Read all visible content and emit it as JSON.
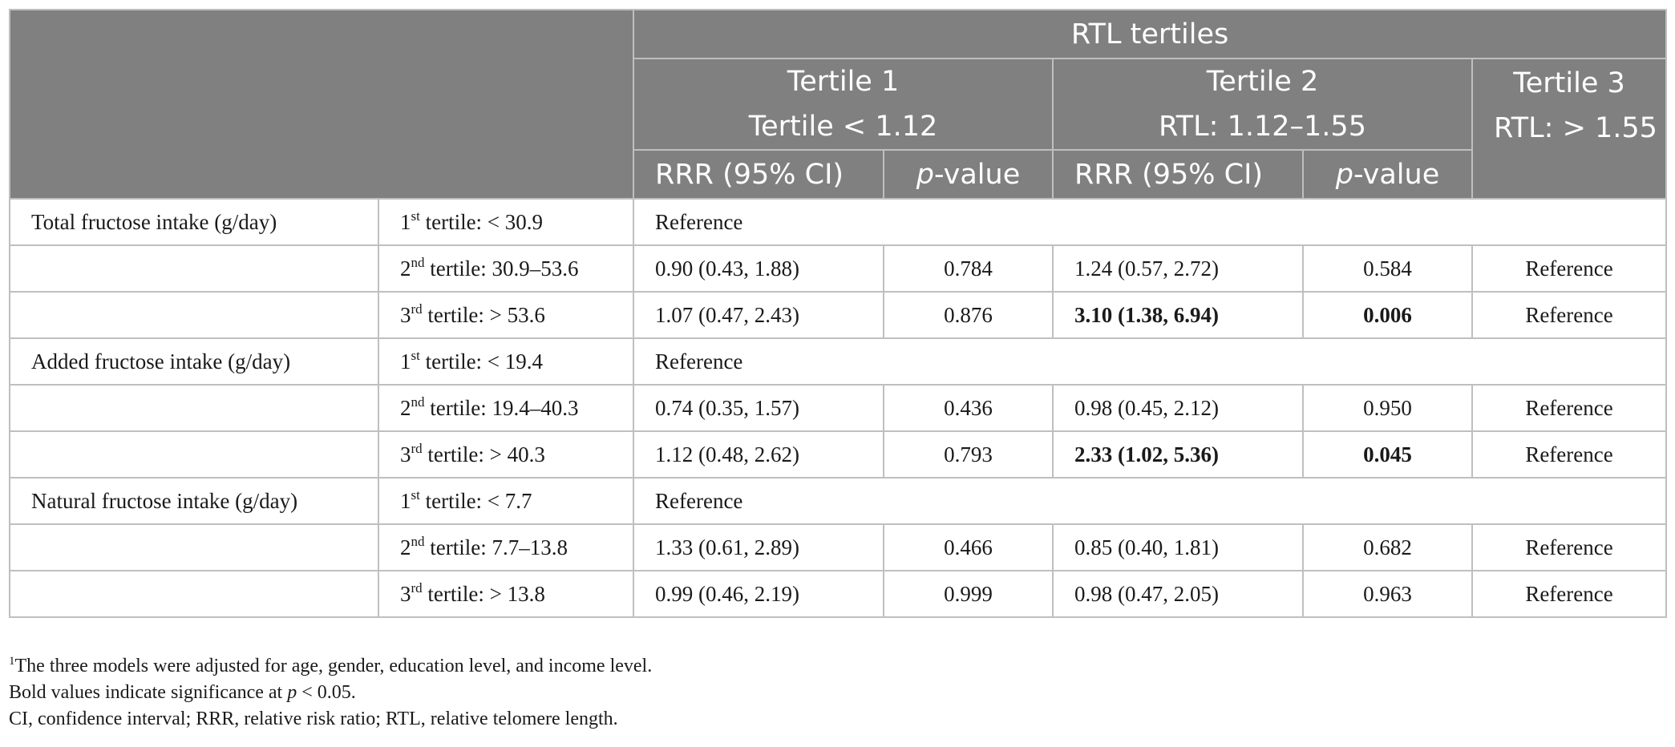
{
  "header": {
    "group_title": "RTL tertiles",
    "tertile1_line1": "Tertile 1",
    "tertile1_line2": "Tertile < 1.12",
    "tertile2_line1": "Tertile 2",
    "tertile2_line2": "RTL: 1.12–1.55",
    "tertile3_line1": "Tertile 3",
    "tertile3_line2": "RTL: > 1.55",
    "rrr_label": "RRR (95% CI)",
    "p_label_italic": "p",
    "p_label_rest": "-value"
  },
  "rows": [
    {
      "group": "Total fructose intake (g/day)",
      "ord": "1",
      "sup": "st",
      "range": " tertile: < 30.9",
      "reference_span": "Reference"
    },
    {
      "ord": "2",
      "sup": "nd",
      "range": " tertile: 30.9–53.6",
      "rrr1": "0.90 (0.43, 1.88)",
      "p1": "0.784",
      "rrr2": "1.24 (0.57, 2.72)",
      "p2": "0.584",
      "t3": "Reference"
    },
    {
      "ord": "3",
      "sup": "rd",
      "range": " tertile: > 53.6",
      "rrr1": "1.07 (0.47, 2.43)",
      "p1": "0.876",
      "rrr2": "3.10 (1.38, 6.94)",
      "p2": "0.006",
      "t3": "Reference"
    },
    {
      "group": "Added fructose intake (g/day)",
      "ord": "1",
      "sup": "st",
      "range": " tertile: < 19.4",
      "reference_span": "Reference"
    },
    {
      "ord": "2",
      "sup": "nd",
      "range": " tertile: 19.4–40.3",
      "rrr1": "0.74 (0.35, 1.57)",
      "p1": "0.436",
      "rrr2": "0.98 (0.45, 2.12)",
      "p2": "0.950",
      "t3": "Reference"
    },
    {
      "ord": "3",
      "sup": "rd",
      "range": " tertile: > 40.3",
      "rrr1": "1.12 (0.48, 2.62)",
      "p1": "0.793",
      "rrr2": "2.33 (1.02, 5.36)",
      "p2": "0.045",
      "t3": "Reference"
    },
    {
      "group": "Natural fructose intake (g/day)",
      "ord": "1",
      "sup": "st",
      "range": " tertile: < 7.7",
      "reference_span": "Reference"
    },
    {
      "ord": "2",
      "sup": "nd",
      "range": " tertile: 7.7–13.8",
      "rrr1": "1.33 (0.61, 2.89)",
      "p1": "0.466",
      "rrr2": "0.85 (0.40, 1.81)",
      "p2": "0.682",
      "t3": "Reference"
    },
    {
      "ord": "3",
      "sup": "rd",
      "range": " tertile: > 13.8",
      "rrr1": "0.99 (0.46, 2.19)",
      "p1": "0.999",
      "rrr2": "0.98 (0.47, 2.05)",
      "p2": "0.963",
      "t3": "Reference"
    }
  ],
  "footnotes": {
    "note1_sup": "1",
    "note1": "The three models were adjusted for age, gender, education level, and income level.",
    "note2_a": "Bold values indicate significance at ",
    "note2_p": "p",
    "note2_b": " < 0.05.",
    "note3": "CI, confidence interval; RRR, relative risk ratio; RTL, relative telomere length."
  }
}
